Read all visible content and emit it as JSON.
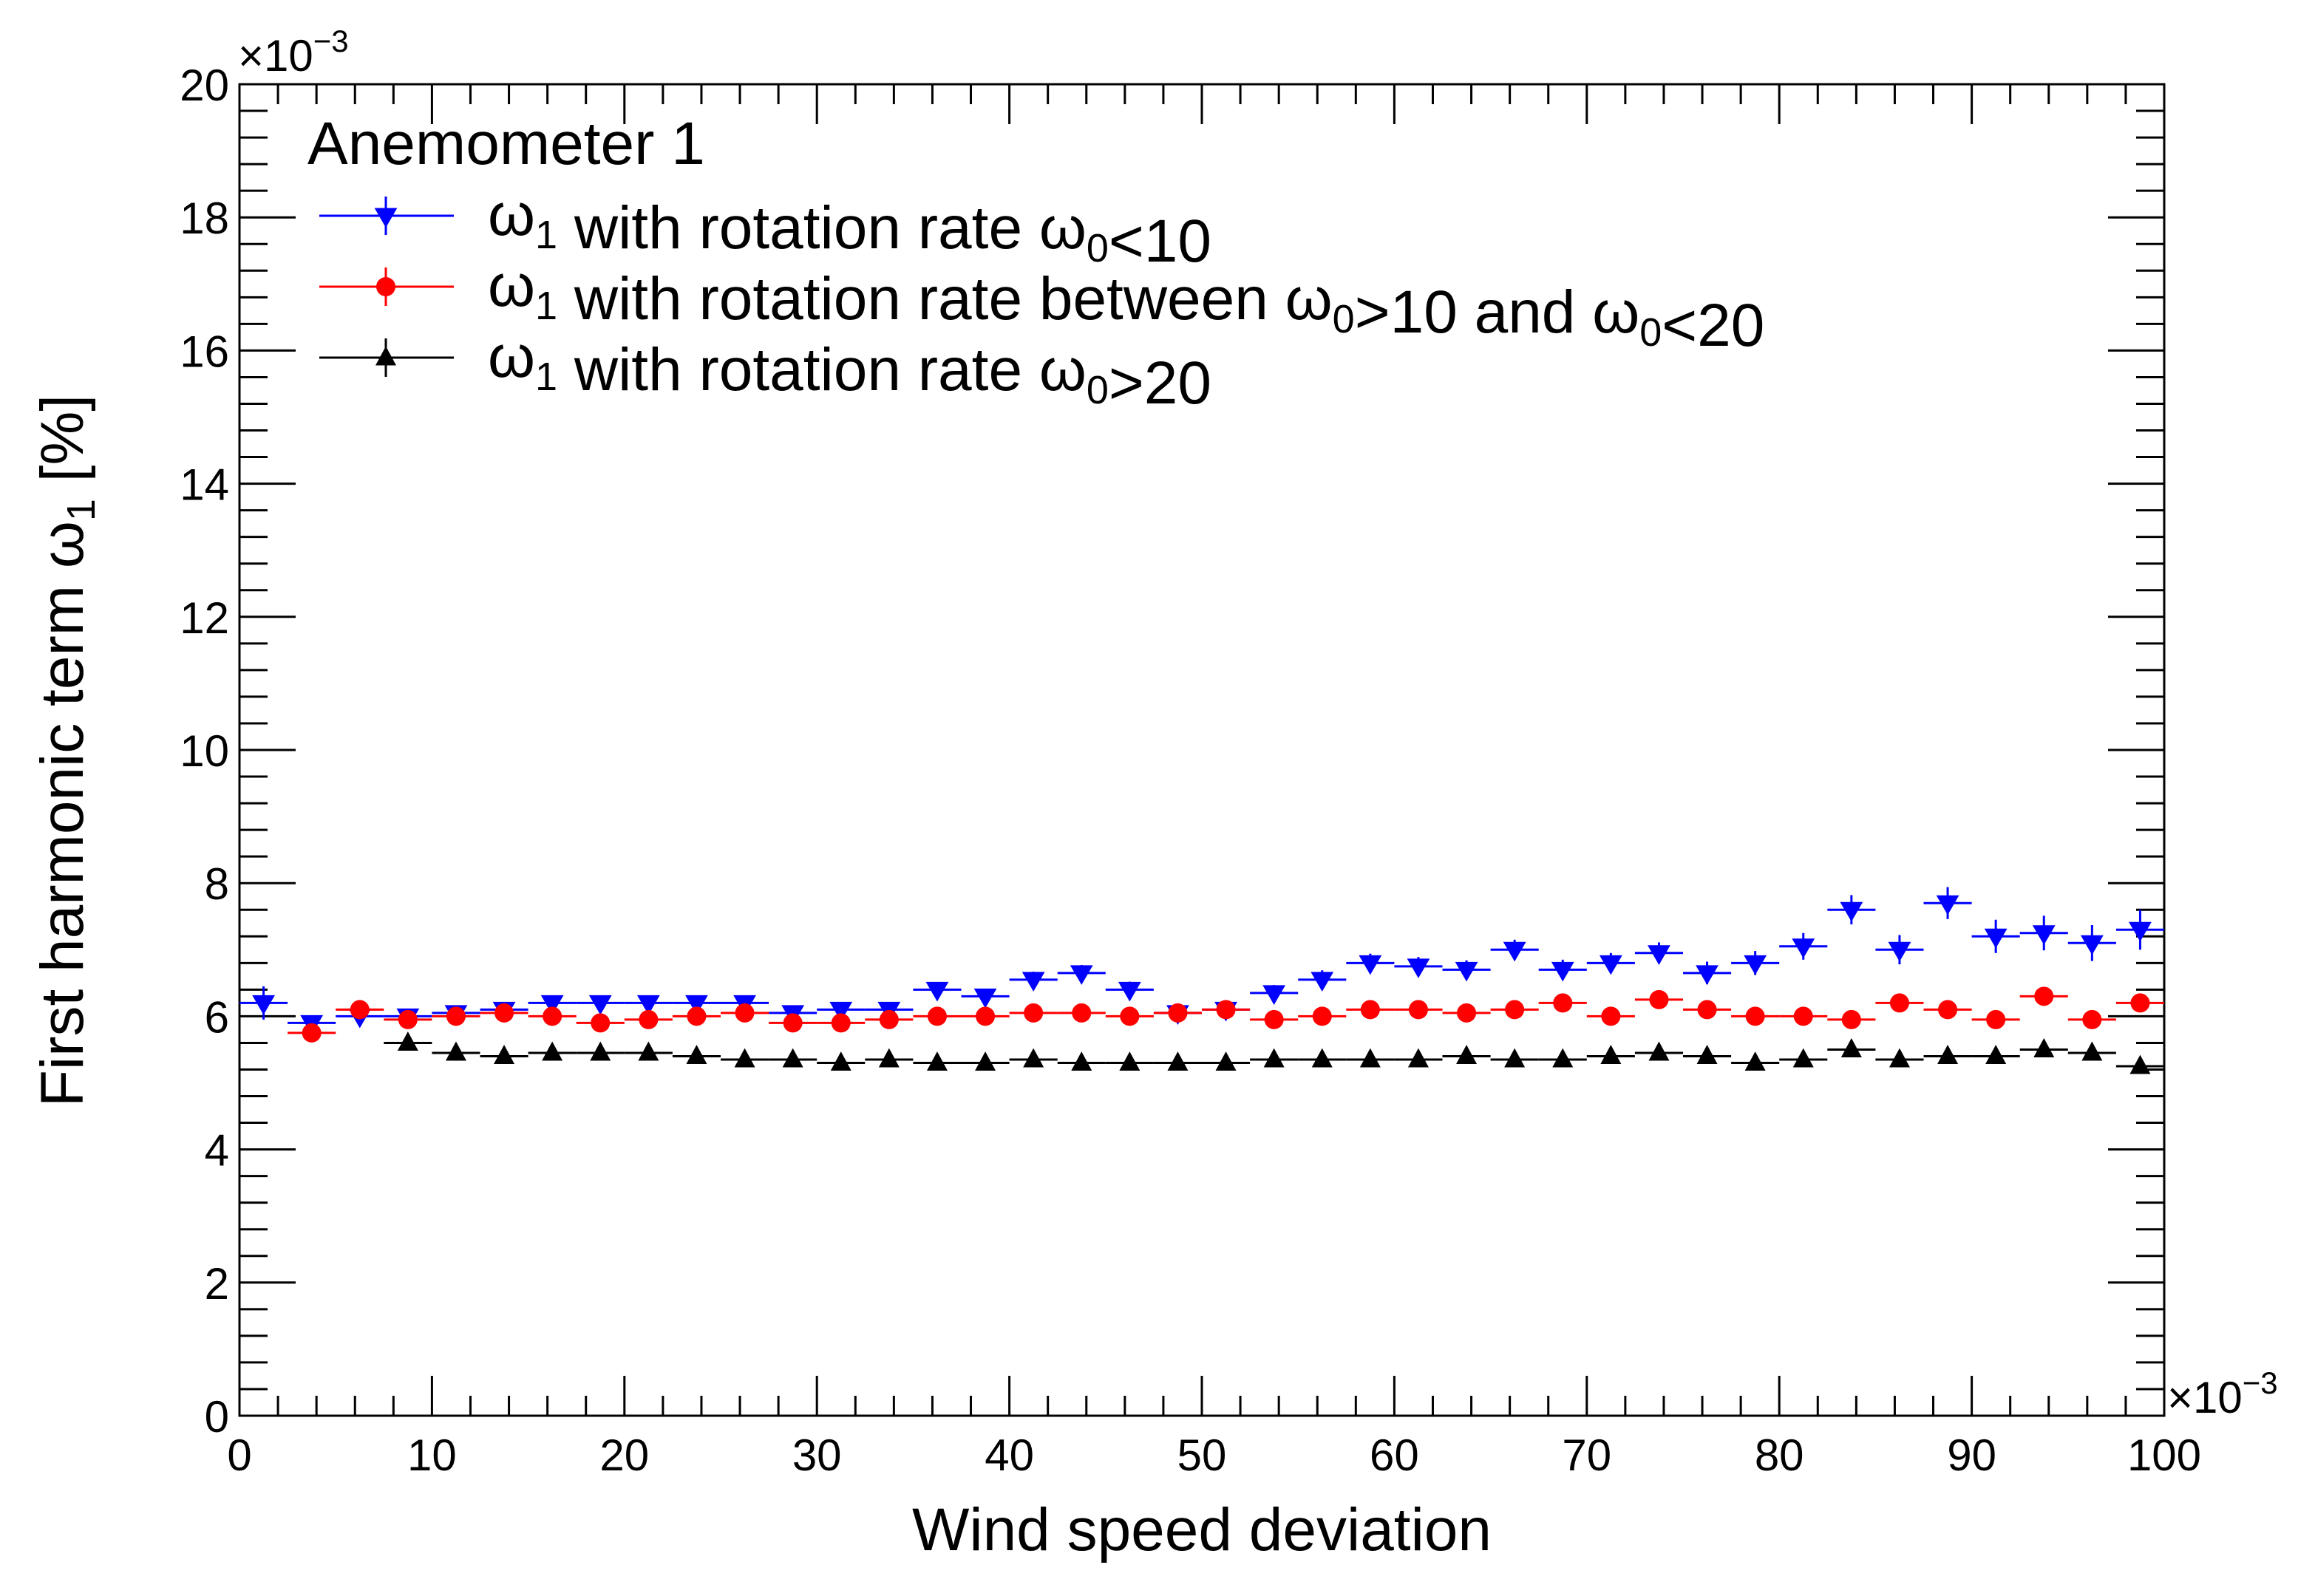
{
  "chart_data": {
    "type": "scatter",
    "title": "Anemometer 1",
    "xlabel": "Wind speed deviation",
    "ylabel_main": "First harmonic term ω",
    "ylabel_sub": "1",
    "ylabel_unit": " [%]",
    "x_multiplier": "×10",
    "y_multiplier": "×10",
    "multiplier_exp": "−3",
    "xlim": [
      0,
      100
    ],
    "ylim": [
      0,
      20
    ],
    "x_ticks": [
      0,
      10,
      20,
      30,
      40,
      50,
      60,
      70,
      80,
      90,
      100
    ],
    "y_ticks": [
      0,
      2,
      4,
      6,
      8,
      10,
      12,
      14,
      16,
      18,
      20
    ],
    "x_tick_labels": [
      "0",
      "10",
      "20",
      "30",
      "40",
      "50",
      "60",
      "70",
      "80",
      "90",
      "100"
    ],
    "y_tick_labels": [
      "0",
      "2",
      "4",
      "6",
      "8",
      "10",
      "12",
      "14",
      "16",
      "18",
      "20"
    ],
    "legend_position": "top-left",
    "series": [
      {
        "name": "ω1 with rotation rate ω0<10",
        "legend_parts": [
          [
            "ω",
            ""
          ],
          [
            "1",
            "sub"
          ],
          [
            " with rotation rate ω",
            ""
          ],
          [
            "0",
            "sub"
          ],
          [
            "<10",
            ""
          ]
        ],
        "color": "#0000ff",
        "marker": "triangle-down",
        "x": [
          1.25,
          3.75,
          6.25,
          8.75,
          11.25,
          13.75,
          16.25,
          18.75,
          21.25,
          23.75,
          26.25,
          28.75,
          31.25,
          33.75,
          36.25,
          38.75,
          41.25,
          43.75,
          46.25,
          48.75,
          51.25,
          53.75,
          56.25,
          58.75,
          61.25,
          63.75,
          66.25,
          68.75,
          71.25,
          73.75,
          76.25,
          78.75,
          81.25,
          83.75,
          86.25,
          88.75,
          91.25,
          93.75,
          96.25,
          98.75
        ],
        "y": [
          6.2,
          5.9,
          6.0,
          6.0,
          6.05,
          6.1,
          6.2,
          6.2,
          6.2,
          6.2,
          6.2,
          6.05,
          6.1,
          6.1,
          6.4,
          6.3,
          6.55,
          6.65,
          6.4,
          6.05,
          6.1,
          6.35,
          6.55,
          6.8,
          6.75,
          6.7,
          7.0,
          6.7,
          6.8,
          6.95,
          6.65,
          6.8,
          7.05,
          7.6,
          7.0,
          7.7,
          7.2,
          7.25,
          7.1,
          7.3
        ],
        "yerr": [
          0.25,
          0.1,
          0.1,
          0.1,
          0.1,
          0.1,
          0.1,
          0.1,
          0.1,
          0.1,
          0.1,
          0.1,
          0.1,
          0.1,
          0.1,
          0.1,
          0.12,
          0.12,
          0.12,
          0.12,
          0.12,
          0.12,
          0.14,
          0.14,
          0.14,
          0.14,
          0.15,
          0.15,
          0.15,
          0.16,
          0.17,
          0.18,
          0.2,
          0.22,
          0.22,
          0.24,
          0.25,
          0.26,
          0.27,
          0.3
        ]
      },
      {
        "name": "ω1 with rotation rate between ω0>10 and ω0<20",
        "legend_parts": [
          [
            "ω",
            ""
          ],
          [
            "1",
            "sub"
          ],
          [
            " with rotation rate between ω",
            ""
          ],
          [
            "0",
            "sub"
          ],
          [
            ">10 and ω",
            ""
          ],
          [
            "0",
            "sub"
          ],
          [
            "<20",
            ""
          ]
        ],
        "color": "#ff0000",
        "marker": "circle",
        "x": [
          3.75,
          6.25,
          8.75,
          11.25,
          13.75,
          16.25,
          18.75,
          21.25,
          23.75,
          26.25,
          28.75,
          31.25,
          33.75,
          36.25,
          38.75,
          41.25,
          43.75,
          46.25,
          48.75,
          51.25,
          53.75,
          56.25,
          58.75,
          61.25,
          63.75,
          66.25,
          68.75,
          71.25,
          73.75,
          76.25,
          78.75,
          81.25,
          83.75,
          86.25,
          88.75,
          91.25,
          93.75,
          96.25,
          98.75
        ],
        "y": [
          5.75,
          6.1,
          5.95,
          6.0,
          6.05,
          6.0,
          5.9,
          5.95,
          6.0,
          6.05,
          5.9,
          5.9,
          5.95,
          6.0,
          6.0,
          6.05,
          6.05,
          6.0,
          6.05,
          6.1,
          5.95,
          6.0,
          6.1,
          6.1,
          6.05,
          6.1,
          6.2,
          6.0,
          6.25,
          6.1,
          6.0,
          6.0,
          5.95,
          6.2,
          6.1,
          5.95,
          6.3,
          5.95,
          6.2
        ],
        "yerr": [
          0.08,
          0.08,
          0.08,
          0.08,
          0.08,
          0.08,
          0.08,
          0.08,
          0.08,
          0.08,
          0.08,
          0.08,
          0.08,
          0.08,
          0.08,
          0.08,
          0.08,
          0.08,
          0.08,
          0.08,
          0.08,
          0.08,
          0.08,
          0.08,
          0.08,
          0.08,
          0.08,
          0.08,
          0.08,
          0.08,
          0.08,
          0.08,
          0.08,
          0.08,
          0.08,
          0.08,
          0.08,
          0.08,
          0.08
        ]
      },
      {
        "name": "ω1 with rotation rate ω0>20",
        "legend_parts": [
          [
            "ω",
            ""
          ],
          [
            "1",
            "sub"
          ],
          [
            " with rotation rate ω",
            ""
          ],
          [
            "0",
            "sub"
          ],
          [
            ">20",
            ""
          ]
        ],
        "color": "#000000",
        "marker": "triangle-up",
        "x": [
          8.75,
          11.25,
          13.75,
          16.25,
          18.75,
          21.25,
          23.75,
          26.25,
          28.75,
          31.25,
          33.75,
          36.25,
          38.75,
          41.25,
          43.75,
          46.25,
          48.75,
          51.25,
          53.75,
          56.25,
          58.75,
          61.25,
          63.75,
          66.25,
          68.75,
          71.25,
          73.75,
          76.25,
          78.75,
          81.25,
          83.75,
          86.25,
          88.75,
          91.25,
          93.75,
          96.25,
          98.75
        ],
        "y": [
          5.6,
          5.45,
          5.4,
          5.45,
          5.45,
          5.45,
          5.4,
          5.35,
          5.35,
          5.3,
          5.35,
          5.3,
          5.3,
          5.35,
          5.3,
          5.3,
          5.3,
          5.3,
          5.35,
          5.35,
          5.35,
          5.35,
          5.4,
          5.35,
          5.35,
          5.4,
          5.45,
          5.4,
          5.3,
          5.35,
          5.5,
          5.35,
          5.4,
          5.4,
          5.5,
          5.45,
          5.25
        ],
        "yerr": [
          0.1,
          0.05,
          0.05,
          0.05,
          0.05,
          0.05,
          0.05,
          0.05,
          0.05,
          0.05,
          0.05,
          0.05,
          0.05,
          0.05,
          0.05,
          0.05,
          0.05,
          0.05,
          0.05,
          0.05,
          0.05,
          0.05,
          0.05,
          0.05,
          0.05,
          0.05,
          0.05,
          0.05,
          0.05,
          0.05,
          0.05,
          0.05,
          0.05,
          0.05,
          0.05,
          0.05,
          0.05
        ]
      }
    ]
  }
}
